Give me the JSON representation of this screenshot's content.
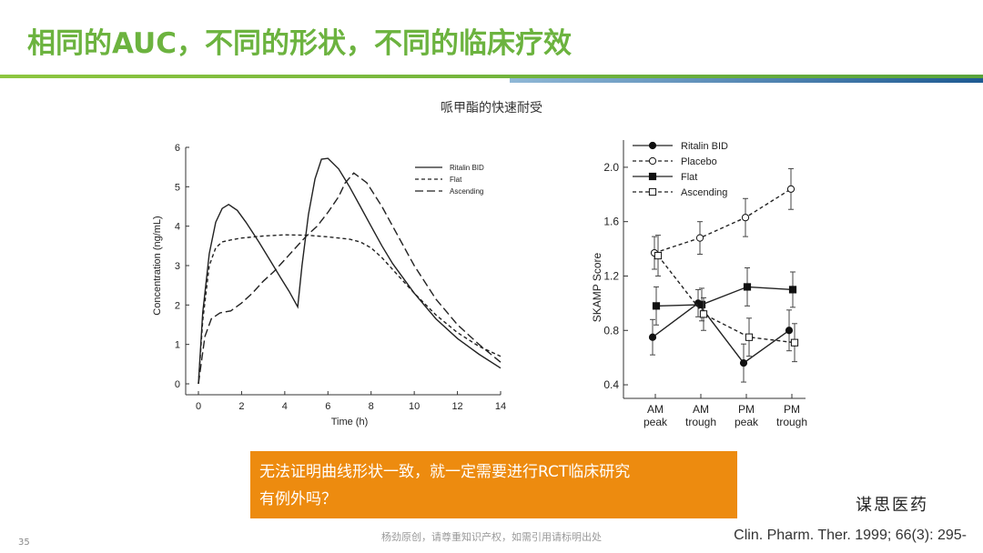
{
  "slide": {
    "title": "相同的AUC，不同的形状，不同的临床疗效",
    "subtitle": "哌甲酯的快速耐受",
    "callout_line1": "无法证明曲线形状一致，就一定需要进行RCT临床研究",
    "callout_line2": "有例外吗？",
    "slide_number": "35",
    "footer_note": "杨劲原创，请尊重知识产权，如需引用请标明出处",
    "citation": "Clin. Pharm. Ther. 1999; 66(3): 295-",
    "watermark": "谋思医药",
    "accent_green": "#6cb33f",
    "accent_blue": "#1e5a92",
    "callout_color": "#ed8b0f"
  },
  "chart_data": [
    {
      "type": "line",
      "xlabel": "Time (h)",
      "ylabel": "Concentration (ng/mL)",
      "xlim": [
        0,
        14
      ],
      "ylim": [
        0,
        6
      ],
      "xticks": [
        0,
        2,
        4,
        6,
        8,
        10,
        12,
        14
      ],
      "yticks": [
        0,
        1,
        2,
        3,
        4,
        5,
        6
      ],
      "legend_position": "top-right",
      "series": [
        {
          "name": "Ritalin BID",
          "style": "solid",
          "x": [
            0,
            0.2,
            0.5,
            0.8,
            1.1,
            1.4,
            1.8,
            2.2,
            2.8,
            3.3,
            3.8,
            4.2,
            4.6,
            4.8,
            5.1,
            5.4,
            5.7,
            6.0,
            6.5,
            7.0,
            7.5,
            8.0,
            8.5,
            9.0,
            10,
            11,
            12,
            13,
            14
          ],
          "y": [
            0,
            1.8,
            3.3,
            4.1,
            4.45,
            4.55,
            4.4,
            4.1,
            3.6,
            3.15,
            2.7,
            2.35,
            1.95,
            3.0,
            4.3,
            5.2,
            5.7,
            5.72,
            5.45,
            5.0,
            4.5,
            4.0,
            3.5,
            3.05,
            2.3,
            1.65,
            1.15,
            0.75,
            0.4
          ]
        },
        {
          "name": "Flat",
          "style": "dashed",
          "x": [
            0,
            0.2,
            0.5,
            0.8,
            1.1,
            1.5,
            2.0,
            3.0,
            4.0,
            5.0,
            6.0,
            7.0,
            7.5,
            8.0,
            8.5,
            9.0,
            10,
            11,
            12,
            13,
            14
          ],
          "y": [
            0,
            1.6,
            3.0,
            3.45,
            3.6,
            3.65,
            3.7,
            3.75,
            3.78,
            3.77,
            3.73,
            3.67,
            3.6,
            3.45,
            3.2,
            2.9,
            2.3,
            1.75,
            1.3,
            0.95,
            0.7
          ]
        },
        {
          "name": "Ascending",
          "style": "long-dash",
          "x": [
            0,
            0.3,
            0.6,
            1.0,
            1.5,
            2.0,
            2.5,
            3.0,
            3.5,
            4.0,
            4.5,
            5.0,
            5.5,
            6.0,
            6.5,
            6.8,
            7.2,
            7.8,
            8.5,
            9.0,
            10,
            11,
            12,
            13,
            14
          ],
          "y": [
            0,
            1.2,
            1.65,
            1.8,
            1.85,
            2.05,
            2.3,
            2.6,
            2.85,
            3.15,
            3.45,
            3.75,
            4.0,
            4.35,
            4.75,
            5.1,
            5.35,
            5.1,
            4.5,
            4.0,
            3.0,
            2.15,
            1.5,
            1.0,
            0.55
          ]
        }
      ]
    },
    {
      "type": "line",
      "xlabel": "",
      "ylabel": "SKAMP Score",
      "categories": [
        "AM peak",
        "AM trough",
        "PM peak",
        "PM trough"
      ],
      "ylim": [
        0.3,
        2.2
      ],
      "yticks": [
        0.4,
        0.8,
        1.2,
        1.6,
        2.0
      ],
      "legend_position": "top-left",
      "series": [
        {
          "name": "Ritalin BID",
          "style": "solid",
          "marker": "filled-circle",
          "values": [
            0.75,
            1.0,
            0.56,
            0.8
          ],
          "errors": [
            0.13,
            0.1,
            0.14,
            0.15
          ]
        },
        {
          "name": "Placebo",
          "style": "dashed",
          "marker": "open-circle",
          "values": [
            1.37,
            1.48,
            1.63,
            1.84
          ],
          "errors": [
            0.12,
            0.12,
            0.14,
            0.15
          ]
        },
        {
          "name": "Flat",
          "style": "solid",
          "marker": "filled-square",
          "values": [
            0.98,
            0.99,
            1.12,
            1.1
          ],
          "errors": [
            0.14,
            0.12,
            0.14,
            0.13
          ]
        },
        {
          "name": "Ascending",
          "style": "dashed",
          "marker": "open-square",
          "values": [
            1.35,
            0.92,
            0.75,
            0.71
          ],
          "errors": [
            0.15,
            0.12,
            0.14,
            0.14
          ]
        }
      ]
    }
  ]
}
